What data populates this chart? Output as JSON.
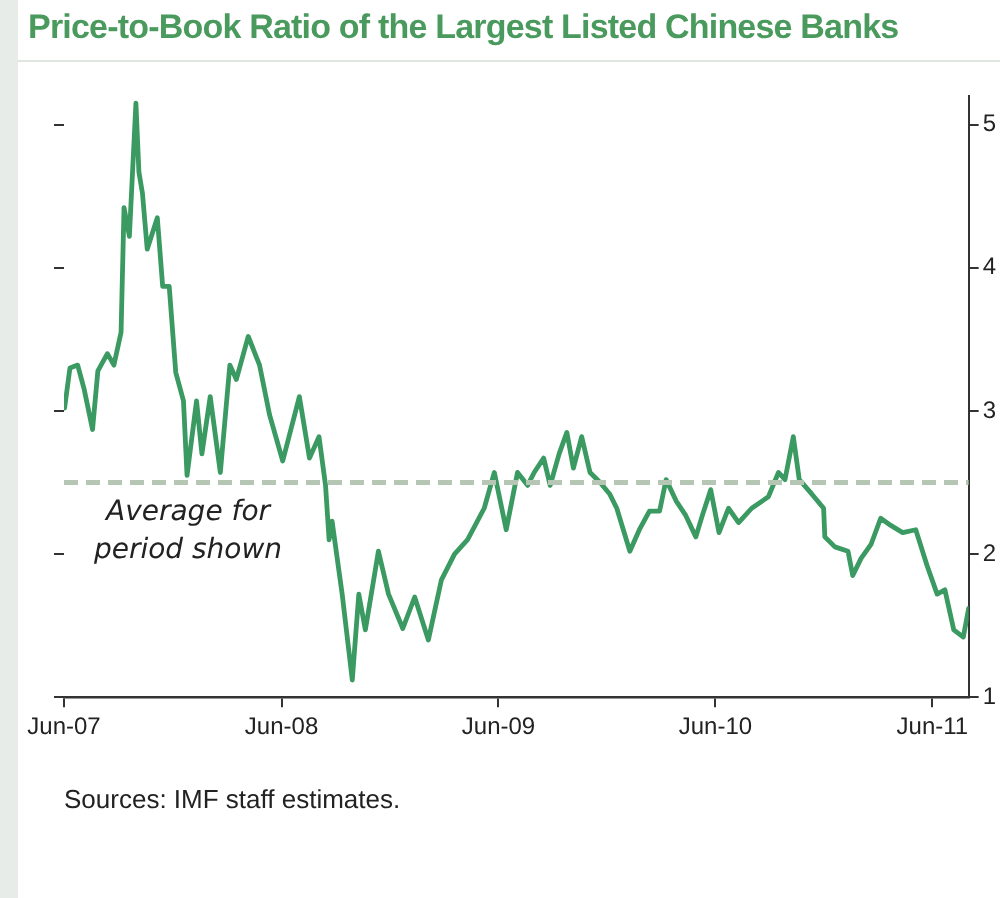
{
  "chart_data": {
    "type": "line",
    "title": "Price-to-Book Ratio of the Largest Listed Chinese Banks",
    "x": [
      "2007-06-02",
      "2007-06-11",
      "2007-06-24",
      "2007-07-05",
      "2007-07-19",
      "2007-07-28",
      "2007-08-13",
      "2007-08-24",
      "2007-09-05",
      "2007-09-10",
      "2007-09-19",
      "2007-09-30",
      "2007-10-05",
      "2007-10-11",
      "2007-10-19",
      "2007-11-05",
      "2007-11-14",
      "2007-11-25",
      "2007-12-06",
      "2007-12-19",
      "2007-12-25",
      "2008-01-10",
      "2008-01-19",
      "2008-02-02",
      "2008-02-19",
      "2008-03-06",
      "2008-03-17",
      "2008-04-06",
      "2008-04-25",
      "2008-05-12",
      "2008-06-03",
      "2008-07-01",
      "2008-07-18",
      "2008-08-03",
      "2008-08-14",
      "2008-08-20",
      "2008-08-25",
      "2008-09-11",
      "2008-09-28",
      "2008-10-09",
      "2008-10-20",
      "2008-11-11",
      "2008-11-28",
      "2008-12-22",
      "2009-01-11",
      "2009-02-03",
      "2009-02-25",
      "2009-03-19",
      "2009-04-10",
      "2009-05-08",
      "2009-05-25",
      "2009-06-14",
      "2009-07-03",
      "2009-07-20",
      "2009-07-31",
      "2009-08-16",
      "2009-08-27",
      "2009-09-11",
      "2009-09-24",
      "2009-10-05",
      "2009-10-19",
      "2009-11-02",
      "2009-11-19",
      "2009-12-05",
      "2009-12-17",
      "2010-01-08",
      "2010-01-24",
      "2010-02-10",
      "2010-02-27",
      "2010-03-10",
      "2010-03-27",
      "2010-04-12",
      "2010-04-29",
      "2010-05-10",
      "2010-05-24",
      "2010-06-07",
      "2010-06-23",
      "2010-07-10",
      "2010-08-01",
      "2010-08-29",
      "2010-09-15",
      "2010-09-26",
      "2010-10-10",
      "2010-10-20",
      "2010-11-10",
      "2010-11-30",
      "2010-12-02",
      "2010-12-19",
      "2011-01-10",
      "2011-01-18",
      "2011-02-01",
      "2011-02-18",
      "2011-03-06",
      "2011-03-23",
      "2011-04-12",
      "2011-05-04",
      "2011-05-23",
      "2011-06-09",
      "2011-06-22",
      "2011-07-07",
      "2011-07-23",
      "2011-08-01"
    ],
    "series": [
      {
        "color": "#3a9a62",
        "values": [
          3.02,
          3.3,
          3.32,
          3.15,
          2.87,
          3.28,
          3.4,
          3.32,
          3.55,
          4.42,
          4.22,
          5.15,
          4.67,
          4.52,
          4.13,
          4.35,
          3.87,
          3.87,
          3.27,
          3.07,
          2.55,
          3.07,
          2.7,
          3.1,
          2.57,
          3.32,
          3.22,
          3.52,
          3.32,
          2.97,
          2.65,
          3.1,
          2.67,
          2.82,
          2.48,
          2.1,
          2.23,
          1.72,
          1.12,
          1.72,
          1.47,
          2.02,
          1.72,
          1.48,
          1.7,
          1.4,
          1.82,
          2.0,
          2.1,
          2.32,
          2.57,
          2.17,
          2.57,
          2.48,
          2.57,
          2.67,
          2.48,
          2.7,
          2.85,
          2.6,
          2.82,
          2.57,
          2.5,
          2.42,
          2.32,
          2.02,
          2.17,
          2.3,
          2.3,
          2.52,
          2.37,
          2.27,
          2.12,
          2.27,
          2.45,
          2.15,
          2.32,
          2.22,
          2.32,
          2.4,
          2.57,
          2.52,
          2.82,
          2.52,
          2.42,
          2.32,
          2.12,
          2.05,
          2.02,
          1.85,
          1.97,
          2.07,
          2.25,
          2.2,
          2.15,
          2.17,
          1.92,
          1.72,
          1.75,
          1.47,
          1.42,
          1.62
        ]
      }
    ],
    "xlim": [
      "2007-06-01",
      "2011-08-01"
    ],
    "xticks": [
      {
        "value": "2007-06-01",
        "label": "Jun-07"
      },
      {
        "value": "2008-06-01",
        "label": "Jun-08"
      },
      {
        "value": "2009-06-01",
        "label": "Jun-09"
      },
      {
        "value": "2010-06-01",
        "label": "Jun-10"
      },
      {
        "value": "2011-06-01",
        "label": "Jun-11"
      }
    ],
    "ylim": [
      1,
      5.2
    ],
    "yticks": [
      1,
      2,
      3,
      4,
      5
    ],
    "ref_lines": [
      {
        "axis": "y",
        "value": 2.5,
        "label": "Average for period shown",
        "color": "#b5c6b5",
        "line_style": "dashed"
      }
    ],
    "grid": false,
    "legend": false,
    "marker": "none",
    "line_style": "solid",
    "annotations": [
      "Sources: IMF staff estimates."
    ]
  }
}
